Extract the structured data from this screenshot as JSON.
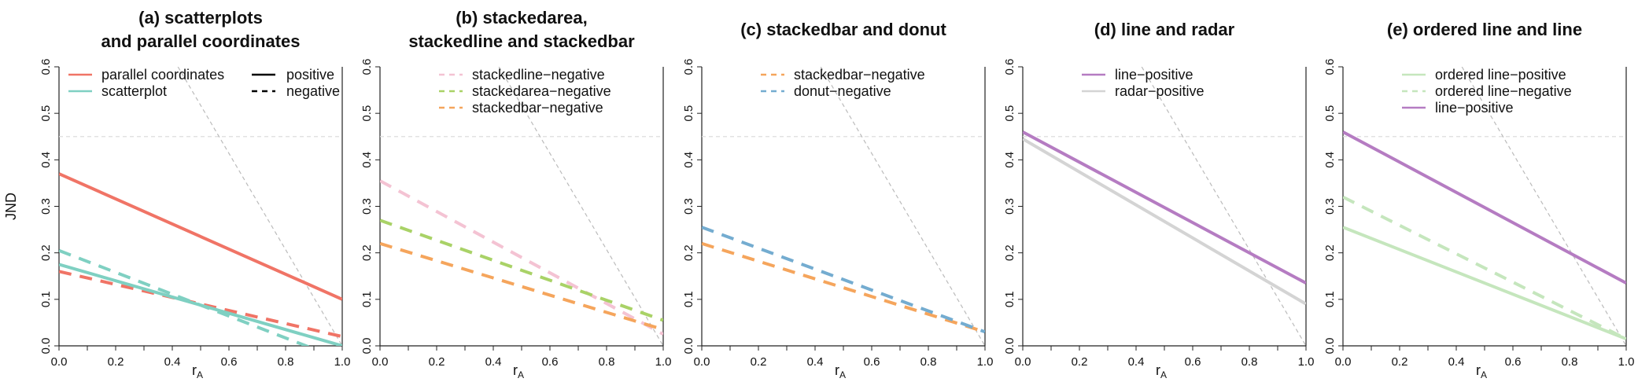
{
  "figure": {
    "ylabel": "JND",
    "xlabel_main": "r",
    "xlabel_sub": "A",
    "reference_line": {
      "y": 0.45,
      "color": "#dddddd"
    },
    "upper_bound_line": {
      "x": [
        0.42,
        1.0
      ],
      "y": [
        0.6,
        0.0
      ],
      "color": "#bbbbbb"
    }
  },
  "chart_data": [
    {
      "type": "line",
      "title": [
        "(a) scatterplots",
        "and parallel coordinates"
      ],
      "xlabel": "rA",
      "ylabel": "JND",
      "xlim": [
        0,
        1
      ],
      "ylim": [
        0,
        0.6
      ],
      "xticks": [
        "0.0",
        "0.2",
        "0.4",
        "0.6",
        "0.8",
        "1.0"
      ],
      "yticks": [
        "0.0",
        "0.1",
        "0.2",
        "0.3",
        "0.4",
        "0.5",
        "0.6"
      ],
      "legend": [
        {
          "label": "parallel coordinates",
          "color": "#f07466",
          "dash": "solid"
        },
        {
          "label": "scatterplot",
          "color": "#7fd0c2",
          "dash": "solid"
        }
      ],
      "legend2": [
        {
          "label": "positive",
          "color": "#000000",
          "dash": "solid"
        },
        {
          "label": "negative",
          "color": "#000000",
          "dash": "dashed"
        }
      ],
      "series": [
        {
          "color": "#f07466",
          "dash": "solid",
          "x": [
            0,
            1
          ],
          "y": [
            0.37,
            0.1
          ]
        },
        {
          "color": "#f07466",
          "dash": "dashed",
          "x": [
            0,
            1
          ],
          "y": [
            0.16,
            0.02
          ]
        },
        {
          "color": "#7fd0c2",
          "dash": "solid",
          "x": [
            0,
            1
          ],
          "y": [
            0.175,
            0.0
          ]
        },
        {
          "color": "#7fd0c2",
          "dash": "dashed",
          "x": [
            0,
            1
          ],
          "y": [
            0.205,
            -0.03
          ]
        }
      ]
    },
    {
      "type": "line",
      "title": [
        "(b) stackedarea,",
        "stackedline and stackedbar"
      ],
      "xlabel": "rA",
      "ylabel": "",
      "xlim": [
        0,
        1
      ],
      "ylim": [
        0,
        0.6
      ],
      "xticks": [
        "0.0",
        "0.2",
        "0.4",
        "0.6",
        "0.8",
        "1.0"
      ],
      "yticks": [
        "0.0",
        "0.1",
        "0.2",
        "0.3",
        "0.4",
        "0.5",
        "0.6"
      ],
      "legend": [
        {
          "label": "stackedline−negative",
          "color": "#f4c3d3",
          "dash": "dashed"
        },
        {
          "label": "stackedarea−negative",
          "color": "#a9d267",
          "dash": "dashed"
        },
        {
          "label": "stackedbar−negative",
          "color": "#f5a55c",
          "dash": "dashed"
        }
      ],
      "legend2": [],
      "series": [
        {
          "color": "#f4c3d3",
          "dash": "dashed",
          "x": [
            0,
            1
          ],
          "y": [
            0.355,
            0.025
          ]
        },
        {
          "color": "#a9d267",
          "dash": "dashed",
          "x": [
            0,
            1
          ],
          "y": [
            0.27,
            0.055
          ]
        },
        {
          "color": "#f5a55c",
          "dash": "dashed",
          "x": [
            0,
            1
          ],
          "y": [
            0.22,
            0.035
          ]
        }
      ]
    },
    {
      "type": "line",
      "title": [
        "(c) stackedbar and donut"
      ],
      "xlabel": "rA",
      "ylabel": "",
      "xlim": [
        0,
        1
      ],
      "ylim": [
        0,
        0.6
      ],
      "xticks": [
        "0.0",
        "0.2",
        "0.4",
        "0.6",
        "0.8",
        "1.0"
      ],
      "yticks": [
        "0.0",
        "0.1",
        "0.2",
        "0.3",
        "0.4",
        "0.5",
        "0.6"
      ],
      "legend": [
        {
          "label": "stackedbar−negative",
          "color": "#f5a55c",
          "dash": "dashed"
        },
        {
          "label": "donut−negative",
          "color": "#74acd0",
          "dash": "dashed"
        }
      ],
      "legend2": [],
      "series": [
        {
          "color": "#f5a55c",
          "dash": "dashed",
          "x": [
            0,
            1
          ],
          "y": [
            0.22,
            0.03
          ]
        },
        {
          "color": "#74acd0",
          "dash": "dashed",
          "x": [
            0,
            1
          ],
          "y": [
            0.255,
            0.03
          ]
        }
      ]
    },
    {
      "type": "line",
      "title": [
        "(d) line and radar"
      ],
      "xlabel": "rA",
      "ylabel": "",
      "xlim": [
        0,
        1
      ],
      "ylim": [
        0,
        0.6
      ],
      "xticks": [
        "0.0",
        "0.2",
        "0.4",
        "0.6",
        "0.8",
        "1.0"
      ],
      "yticks": [
        "0.0",
        "0.1",
        "0.2",
        "0.3",
        "0.4",
        "0.5",
        "0.6"
      ],
      "legend": [
        {
          "label": "line−positive",
          "color": "#b57cc2",
          "dash": "solid"
        },
        {
          "label": "radar−positive",
          "color": "#d4d4d4",
          "dash": "solid"
        }
      ],
      "legend2": [],
      "series": [
        {
          "color": "#d4d4d4",
          "dash": "solid",
          "x": [
            0,
            1
          ],
          "y": [
            0.445,
            0.09
          ]
        },
        {
          "color": "#b57cc2",
          "dash": "solid",
          "x": [
            0,
            1
          ],
          "y": [
            0.46,
            0.135
          ]
        }
      ]
    },
    {
      "type": "line",
      "title": [
        "(e) ordered line and line"
      ],
      "xlabel": "rA",
      "ylabel": "",
      "xlim": [
        0,
        1
      ],
      "ylim": [
        0,
        0.6
      ],
      "xticks": [
        "0.0",
        "0.2",
        "0.4",
        "0.6",
        "0.8",
        "1.0"
      ],
      "yticks": [
        "0.0",
        "0.1",
        "0.2",
        "0.3",
        "0.4",
        "0.5",
        "0.6"
      ],
      "legend": [
        {
          "label": "ordered line−positive",
          "color": "#c5e6bd",
          "dash": "solid"
        },
        {
          "label": "ordered line−negative",
          "color": "#c5e6bd",
          "dash": "dashed"
        },
        {
          "label": "line−positive",
          "color": "#b57cc2",
          "dash": "solid"
        }
      ],
      "legend2": [],
      "series": [
        {
          "color": "#c5e6bd",
          "dash": "solid",
          "x": [
            0,
            1
          ],
          "y": [
            0.255,
            0.015
          ]
        },
        {
          "color": "#c5e6bd",
          "dash": "dashed",
          "x": [
            0,
            1
          ],
          "y": [
            0.32,
            0.015
          ]
        },
        {
          "color": "#b57cc2",
          "dash": "solid",
          "x": [
            0,
            1
          ],
          "y": [
            0.46,
            0.135
          ]
        }
      ]
    }
  ]
}
